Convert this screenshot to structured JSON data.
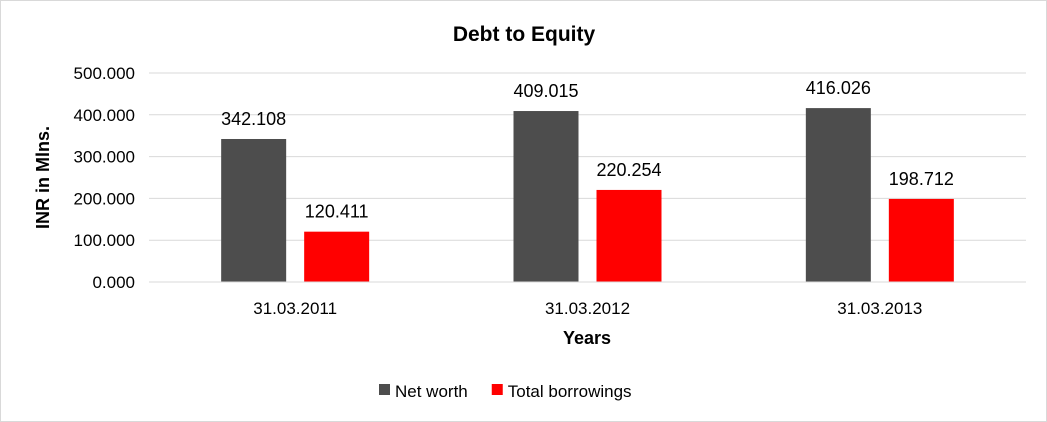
{
  "chart_data": {
    "type": "bar",
    "title": "Debt to Equity",
    "xlabel": "Years",
    "ylabel": "INR in Mlns.",
    "categories": [
      "31.03.2011",
      "31.03.2012",
      "31.03.2013"
    ],
    "series": [
      {
        "name": "Net worth",
        "values": [
          342.108,
          409.015,
          416.026
        ],
        "labels": [
          "342.108",
          "409.015",
          "416.026"
        ],
        "color": "#4d4d4d"
      },
      {
        "name": "Total borrowings",
        "values": [
          120.411,
          220.254,
          198.712
        ],
        "labels": [
          "120.411",
          "220.254",
          "198.712"
        ],
        "color": "#ff0000"
      }
    ],
    "ylim": [
      0,
      500
    ],
    "yticks": [
      "0.000",
      "100.000",
      "200.000",
      "300.000",
      "400.000",
      "500.000"
    ],
    "grid": true,
    "legend_position": "bottom"
  }
}
